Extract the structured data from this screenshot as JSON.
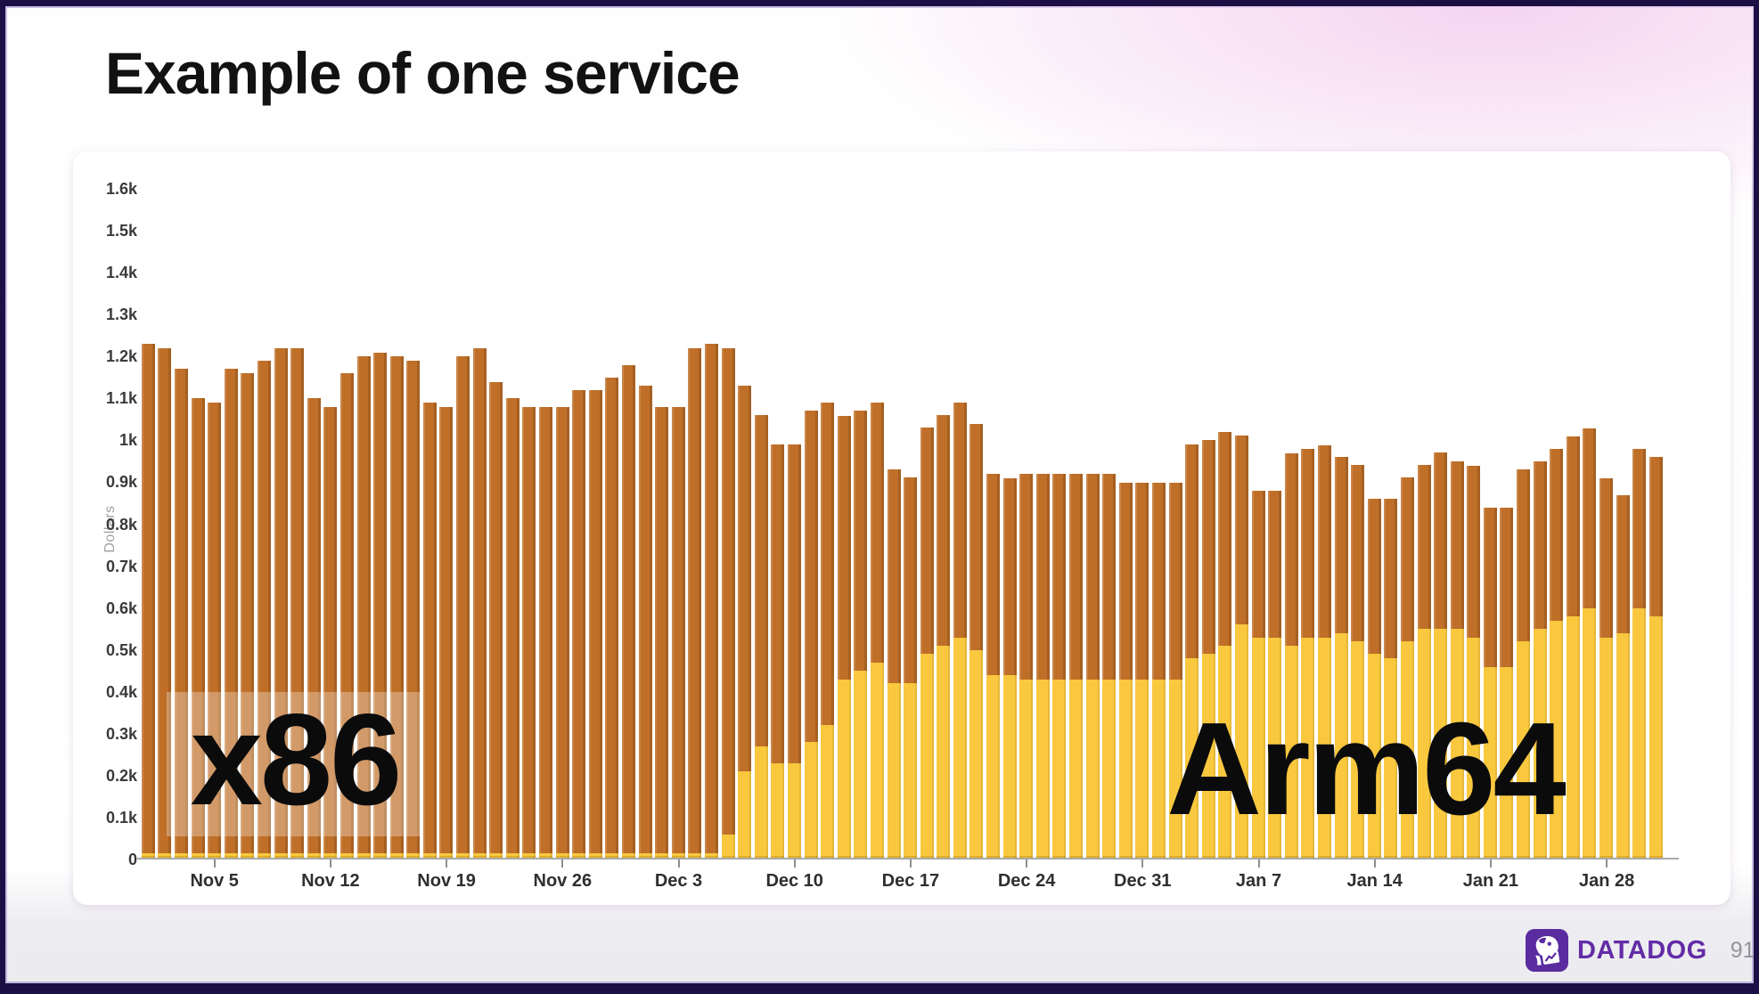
{
  "slide": {
    "title": "Example of one service",
    "brand": "DATADOG",
    "brand_color": "#632ca6",
    "page_number": "91",
    "frame_color": "#1b0f45"
  },
  "chart_data": {
    "type": "bar",
    "stacked": true,
    "ylabel": "Dollars",
    "ylim_dollars": [
      0,
      1600
    ],
    "grid": false,
    "legend": "none",
    "y_ticks": [
      {
        "label": "1.6k",
        "value": 1600
      },
      {
        "label": "1.5k",
        "value": 1500
      },
      {
        "label": "1.4k",
        "value": 1400
      },
      {
        "label": "1.3k",
        "value": 1300
      },
      {
        "label": "1.2k",
        "value": 1200
      },
      {
        "label": "1.1k",
        "value": 1100
      },
      {
        "label": "1k",
        "value": 1000
      },
      {
        "label": "0.9k",
        "value": 900
      },
      {
        "label": "0.8k",
        "value": 800
      },
      {
        "label": "0.7k",
        "value": 700
      },
      {
        "label": "0.6k",
        "value": 600
      },
      {
        "label": "0.5k",
        "value": 500
      },
      {
        "label": "0.4k",
        "value": 400
      },
      {
        "label": "0.3k",
        "value": 300
      },
      {
        "label": "0.2k",
        "value": 200
      },
      {
        "label": "0.1k",
        "value": 100
      },
      {
        "label": "0",
        "value": 0
      }
    ],
    "x_ticks": [
      {
        "label": "Nov 5",
        "index": 4
      },
      {
        "label": "Nov 12",
        "index": 11
      },
      {
        "label": "Nov 19",
        "index": 18
      },
      {
        "label": "Nov 26",
        "index": 25
      },
      {
        "label": "Dec 3",
        "index": 32
      },
      {
        "label": "Dec 10",
        "index": 39
      },
      {
        "label": "Dec 17",
        "index": 46
      },
      {
        "label": "Dec 24",
        "index": 53
      },
      {
        "label": "Dec 31",
        "index": 60
      },
      {
        "label": "Jan 7",
        "index": 67
      },
      {
        "label": "Jan 14",
        "index": 74
      },
      {
        "label": "Jan 21",
        "index": 81
      },
      {
        "label": "Jan 28",
        "index": 88
      }
    ],
    "categories": [
      "Nov 1",
      "Nov 2",
      "Nov 3",
      "Nov 4",
      "Nov 5",
      "Nov 6",
      "Nov 7",
      "Nov 8",
      "Nov 9",
      "Nov 10",
      "Nov 11",
      "Nov 12",
      "Nov 13",
      "Nov 14",
      "Nov 15",
      "Nov 16",
      "Nov 17",
      "Nov 18",
      "Nov 19",
      "Nov 20",
      "Nov 21",
      "Nov 22",
      "Nov 23",
      "Nov 24",
      "Nov 25",
      "Nov 26",
      "Nov 27",
      "Nov 28",
      "Nov 29",
      "Nov 30",
      "Dec 1",
      "Dec 2",
      "Dec 3",
      "Dec 4",
      "Dec 5",
      "Dec 6",
      "Dec 7",
      "Dec 8",
      "Dec 9",
      "Dec 10",
      "Dec 11",
      "Dec 12",
      "Dec 13",
      "Dec 14",
      "Dec 15",
      "Dec 16",
      "Dec 17",
      "Dec 18",
      "Dec 19",
      "Dec 20",
      "Dec 21",
      "Dec 22",
      "Dec 23",
      "Dec 24",
      "Dec 25",
      "Dec 26",
      "Dec 27",
      "Dec 28",
      "Dec 29",
      "Dec 30",
      "Dec 31",
      "Jan 1",
      "Jan 2",
      "Jan 3",
      "Jan 4",
      "Jan 5",
      "Jan 6",
      "Jan 7",
      "Jan 8",
      "Jan 9",
      "Jan 10",
      "Jan 11",
      "Jan 12",
      "Jan 13",
      "Jan 14",
      "Jan 15",
      "Jan 16",
      "Jan 17",
      "Jan 18",
      "Jan 19",
      "Jan 20",
      "Jan 21",
      "Jan 22",
      "Jan 23",
      "Jan 24",
      "Jan 25",
      "Jan 26",
      "Jan 27",
      "Jan 28",
      "Jan 29",
      "Jan 30",
      "Jan 31"
    ],
    "series": [
      {
        "name": "x86",
        "color": "#bf6f28",
        "values": [
          1215,
          1205,
          1155,
          1085,
          1075,
          1155,
          1145,
          1175,
          1205,
          1205,
          1085,
          1065,
          1145,
          1185,
          1195,
          1185,
          1175,
          1075,
          1065,
          1185,
          1205,
          1125,
          1085,
          1065,
          1065,
          1065,
          1105,
          1105,
          1135,
          1165,
          1115,
          1065,
          1065,
          1205,
          1215,
          1160,
          920,
          790,
          760,
          760,
          790,
          770,
          630,
          620,
          620,
          510,
          490,
          540,
          550,
          560,
          540,
          480,
          470,
          490,
          490,
          490,
          490,
          490,
          490,
          470,
          470,
          470,
          470,
          510,
          510,
          510,
          450,
          350,
          350,
          460,
          450,
          460,
          420,
          420,
          370,
          380,
          390,
          390,
          420,
          400,
          410,
          380,
          380,
          410,
          400,
          410,
          430,
          430,
          380,
          330,
          380,
          380
        ]
      },
      {
        "name": "Arm64",
        "color": "#f9c83e",
        "values": [
          15,
          15,
          15,
          15,
          15,
          15,
          15,
          15,
          15,
          15,
          15,
          15,
          15,
          15,
          15,
          15,
          15,
          15,
          15,
          15,
          15,
          15,
          15,
          15,
          15,
          15,
          15,
          15,
          15,
          15,
          15,
          15,
          15,
          15,
          15,
          60,
          210,
          270,
          230,
          230,
          280,
          320,
          430,
          450,
          470,
          420,
          420,
          490,
          510,
          530,
          500,
          440,
          440,
          430,
          430,
          430,
          430,
          430,
          430,
          430,
          430,
          430,
          430,
          480,
          490,
          510,
          560,
          530,
          530,
          510,
          530,
          530,
          540,
          520,
          490,
          480,
          520,
          550,
          550,
          550,
          530,
          460,
          460,
          520,
          550,
          570,
          580,
          600,
          530,
          540,
          600,
          580
        ]
      }
    ],
    "annotations": [
      {
        "text": "x86",
        "series": "x86"
      },
      {
        "text": "Arm64",
        "series": "Arm64"
      }
    ]
  }
}
